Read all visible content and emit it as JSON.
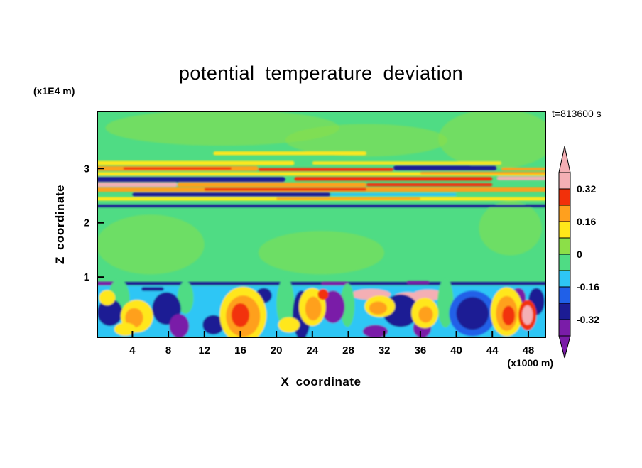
{
  "page_background": "#ffffff",
  "title": "potential temperature deviation",
  "time_label": "t=813600 s",
  "x_axis": {
    "label": "X coordinate",
    "unit": "(x1000 m)",
    "ticks": [
      4,
      8,
      12,
      16,
      20,
      24,
      28,
      32,
      36,
      40,
      44,
      48
    ]
  },
  "y_axis": {
    "label": "Z coordinate",
    "unit": "(x1E4 m)",
    "ticks": [
      1,
      2,
      3
    ]
  },
  "colorbar": {
    "labels": [
      "0.32",
      "0.16",
      "0",
      "-0.16",
      "-0.32"
    ],
    "segments": [
      "pink",
      "red",
      "orange",
      "yellow",
      "green2",
      "green",
      "cyan",
      "blue",
      "navy",
      "purple"
    ],
    "arrow_top": "pink",
    "arrow_bottom": "purple"
  },
  "palette": {
    "green": "#4FDC84",
    "green2": "#8CDF48",
    "yellow": "#FFE71A",
    "orange": "#FFA01E",
    "red": "#F2300A",
    "pink": "#F4AFB4",
    "cyan": "#2EC6F5",
    "blue": "#2060E8",
    "navy": "#1C1C94",
    "purple": "#7A1CA8"
  },
  "chart_data": {
    "type": "heatmap",
    "title": "potential temperature deviation",
    "xlabel": "X coordinate",
    "x_unit": "(x1000 m)",
    "ylabel": "Z coordinate",
    "y_unit": "(x1E4 m)",
    "time_annotation": "t=813600 s",
    "x_ticks": [
      4,
      8,
      12,
      16,
      20,
      24,
      28,
      32,
      36,
      40,
      44,
      48
    ],
    "y_ticks": [
      1,
      2,
      3
    ],
    "x_range": [
      0,
      50
    ],
    "y_range": [
      -0.1,
      4.05
    ],
    "colorbar_tick_values": [
      0.32,
      0.16,
      0,
      -0.16,
      -0.32
    ],
    "contour_interval": 0.08,
    "value_range": [
      -0.4,
      0.4
    ],
    "legend_position": "right",
    "grid": false,
    "regions": [
      {
        "z_range": [
          0.95,
          4.05
        ],
        "summary": "quiescent interior: deviation near 0 (green) with weak positive light-green patches"
      },
      {
        "z_range": [
          2.3,
          3.15
        ],
        "summary": "stratified wave band: thin horizontal streaks alternating between about +0.4 (red/orange/pink) and -0.4 (navy)"
      },
      {
        "z_range": [
          -0.1,
          0.95
        ],
        "summary": "convective boundary layer: turbulent plumes from -0.4 (purple/navy) to +0.4 (red/pink) in a cyan (-0.1) background"
      }
    ],
    "field_features": [
      [
        "e",
        14,
        3.75,
        13,
        0.33,
        "green2",
        0.55
      ],
      [
        "e",
        30,
        3.52,
        9,
        0.3,
        "green2",
        0.55
      ],
      [
        "e",
        44.5,
        3.55,
        6.5,
        0.55,
        "green2",
        0.55
      ],
      [
        "e",
        6,
        1.6,
        6,
        0.55,
        "green2",
        0.5
      ],
      [
        "e",
        25,
        1.45,
        7,
        0.4,
        "green2",
        0.5
      ],
      [
        "e",
        46,
        1.9,
        3.5,
        0.5,
        "green2",
        0.5
      ],
      [
        "r",
        13,
        30,
        3.28,
        0.07,
        "yellow"
      ],
      [
        "r",
        -1,
        22,
        3.1,
        0.08,
        "yellow"
      ],
      [
        "r",
        24,
        45,
        3.1,
        0.06,
        "yellow"
      ],
      [
        "r",
        -1,
        18,
        3.0,
        0.09,
        "orange"
      ],
      [
        "r",
        3,
        15,
        3.0,
        0.045,
        "red"
      ],
      [
        "r",
        33,
        44.5,
        3.01,
        0.09,
        "navy"
      ],
      [
        "r",
        18,
        33,
        2.98,
        0.06,
        "red"
      ],
      [
        "r",
        45,
        51,
        2.99,
        0.05,
        "orange"
      ],
      [
        "r",
        -1,
        51,
        2.9,
        0.065,
        "yellow"
      ],
      [
        "r",
        36,
        51,
        2.915,
        0.045,
        "orange"
      ],
      [
        "r",
        -1,
        21,
        2.8,
        0.1,
        "navy"
      ],
      [
        "r",
        22,
        44,
        2.81,
        0.075,
        "red"
      ],
      [
        "r",
        44.5,
        51,
        2.82,
        0.07,
        "pink"
      ],
      [
        "r",
        -1,
        9,
        2.7,
        0.08,
        "pink"
      ],
      [
        "r",
        9,
        30,
        2.7,
        0.08,
        "orange"
      ],
      [
        "r",
        30,
        44,
        2.7,
        0.06,
        "red"
      ],
      [
        "r",
        -1,
        51,
        2.61,
        0.08,
        "orange"
      ],
      [
        "r",
        12,
        30,
        2.615,
        0.05,
        "red"
      ],
      [
        "r",
        4,
        26,
        2.52,
        0.08,
        "navy"
      ],
      [
        "r",
        26,
        40,
        2.52,
        0.05,
        "cyan"
      ],
      [
        "r",
        -1,
        51,
        2.44,
        0.065,
        "yellow"
      ],
      [
        "r",
        20,
        36,
        2.445,
        0.04,
        "orange"
      ],
      [
        "r",
        -1,
        51,
        2.31,
        0.05,
        "navy"
      ],
      [
        "r",
        -1,
        51,
        0.365,
        0.95,
        "cyan"
      ],
      [
        "r",
        -1,
        51,
        0.88,
        0.06,
        "navy"
      ],
      [
        "r",
        -1,
        2.5,
        0.88,
        0.07,
        "purple"
      ],
      [
        "r",
        25,
        28,
        0.88,
        0.07,
        "purple"
      ],
      [
        "r",
        34.5,
        37,
        0.9,
        0.06,
        "purple"
      ],
      [
        "r",
        5,
        7.5,
        0.78,
        0.07,
        "navy"
      ],
      [
        "e",
        30.5,
        0.68,
        2.2,
        0.1,
        "pink"
      ],
      [
        "e",
        34.6,
        0.63,
        1.6,
        0.09,
        "pink"
      ],
      [
        "e",
        36.9,
        0.67,
        1.8,
        0.1,
        "pink"
      ],
      [
        "e",
        2.5,
        0.6,
        1.2,
        0.35,
        "green"
      ],
      [
        "e",
        9.9,
        0.62,
        0.9,
        0.3,
        "green"
      ],
      [
        "e",
        21,
        0.52,
        1,
        0.45,
        "green"
      ],
      [
        "e",
        27.9,
        0.48,
        0.8,
        0.4,
        "green"
      ],
      [
        "e",
        38.8,
        0.52,
        0.9,
        0.45,
        "green"
      ],
      [
        "e",
        1.5,
        0.35,
        1.4,
        0.25,
        "navy"
      ],
      [
        "e",
        7.8,
        0.42,
        1.6,
        0.3,
        "navy"
      ],
      [
        "e",
        13,
        0.12,
        1.2,
        0.18,
        "navy"
      ],
      [
        "e",
        22.8,
        0.3,
        1,
        0.45,
        "navy"
      ],
      [
        "e",
        33.8,
        0.38,
        2,
        0.3,
        "navy"
      ],
      [
        "e",
        41.8,
        0.33,
        2.6,
        0.42,
        "blue"
      ],
      [
        "e",
        41.8,
        0.33,
        1.8,
        0.3,
        "navy"
      ],
      [
        "e",
        48.9,
        0.55,
        0.9,
        0.25,
        "navy"
      ],
      [
        "e",
        18.6,
        0.66,
        0.9,
        0.14,
        "navy"
      ],
      [
        "e",
        9.2,
        0.1,
        1.1,
        0.22,
        "purple"
      ],
      [
        "e",
        26.3,
        0.45,
        1.3,
        0.3,
        "purple"
      ],
      [
        "e",
        36.2,
        0.06,
        1,
        0.18,
        "purple"
      ],
      [
        "e",
        46.9,
        0.62,
        0.8,
        0.18,
        "purple"
      ],
      [
        "e",
        31,
        0,
        1.4,
        0.12,
        "purple"
      ],
      [
        "e",
        4.5,
        0.28,
        1.8,
        0.3,
        "yellow"
      ],
      [
        "e",
        4.2,
        0.25,
        1,
        0.18,
        "orange"
      ],
      [
        "e",
        1.2,
        0.62,
        0.9,
        0.14,
        "yellow"
      ],
      [
        "e",
        3.2,
        0.04,
        1.2,
        0.12,
        "yellow"
      ],
      [
        "e",
        16.3,
        0.3,
        2.6,
        0.52,
        "yellow"
      ],
      [
        "e",
        16.3,
        0.28,
        1.9,
        0.38,
        "orange"
      ],
      [
        "e",
        16,
        0.3,
        1,
        0.22,
        "red"
      ],
      [
        "e",
        21.4,
        0.12,
        1.2,
        0.14,
        "yellow"
      ],
      [
        "e",
        24,
        0.45,
        1.5,
        0.35,
        "yellow"
      ],
      [
        "e",
        24.1,
        0.42,
        0.9,
        0.22,
        "orange"
      ],
      [
        "e",
        25.2,
        0.68,
        0.6,
        0.1,
        "red"
      ],
      [
        "e",
        31.5,
        0.46,
        1.7,
        0.2,
        "yellow"
      ],
      [
        "e",
        31.3,
        0.43,
        1,
        0.12,
        "orange"
      ],
      [
        "e",
        36.5,
        0.34,
        1.5,
        0.28,
        "yellow"
      ],
      [
        "e",
        36.6,
        0.31,
        0.8,
        0.15,
        "orange"
      ],
      [
        "e",
        45.6,
        0.36,
        1.8,
        0.45,
        "yellow"
      ],
      [
        "e",
        45.6,
        0.33,
        1.2,
        0.32,
        "orange"
      ],
      [
        "e",
        45.8,
        0.29,
        0.7,
        0.18,
        "red"
      ],
      [
        "e",
        47.9,
        0.3,
        1,
        0.28,
        "red"
      ],
      [
        "e",
        47.9,
        0.3,
        0.6,
        0.18,
        "pink"
      ]
    ]
  }
}
